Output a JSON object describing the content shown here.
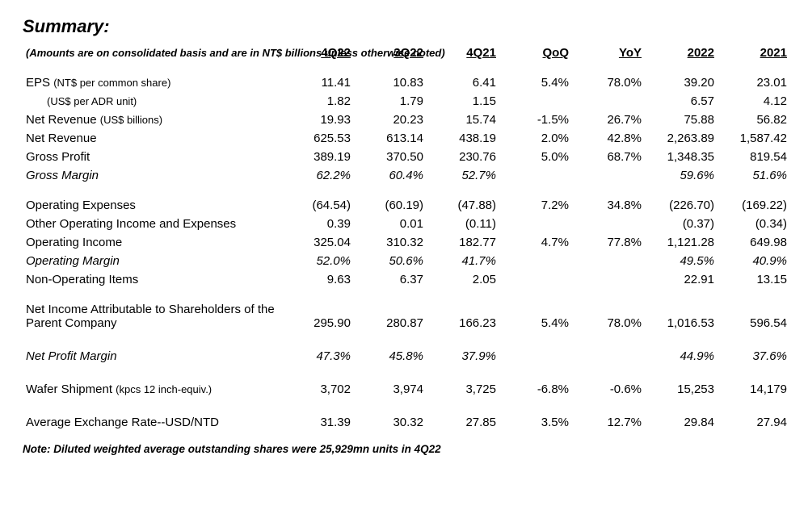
{
  "title": "Summary:",
  "subnote": "(Amounts are on consolidated basis and are in NT$ billions unless otherwise noted)",
  "columns": [
    "4Q22",
    "3Q22",
    "4Q21",
    "QoQ",
    "YoY",
    "2022",
    "2021"
  ],
  "rows": [
    {
      "kind": "data",
      "label_html": "EPS <span class='paren'>(NT$ per common share)</span>",
      "cells": [
        "11.41",
        "10.83",
        "6.41",
        "5.4%",
        "78.0%",
        "39.20",
        "23.01"
      ]
    },
    {
      "kind": "data",
      "label_html": "<span class='indent paren'>(US$ per ADR unit)</span>",
      "cells": [
        "1.82",
        "1.79",
        "1.15",
        "",
        "",
        "6.57",
        "4.12"
      ]
    },
    {
      "kind": "data",
      "label_html": "Net Revenue <span class='paren'>(US$ billions)</span>",
      "cells": [
        "19.93",
        "20.23",
        "15.74",
        "-1.5%",
        "26.7%",
        "75.88",
        "56.82"
      ]
    },
    {
      "kind": "data",
      "label_html": "Net Revenue",
      "cells": [
        "625.53",
        "613.14",
        "438.19",
        "2.0%",
        "42.8%",
        "2,263.89",
        "1,587.42"
      ]
    },
    {
      "kind": "data",
      "label_html": "Gross Profit",
      "cells": [
        "389.19",
        "370.50",
        "230.76",
        "5.0%",
        "68.7%",
        "1,348.35",
        "819.54"
      ]
    },
    {
      "kind": "data",
      "italic": true,
      "label_html": "Gross Margin",
      "cells": [
        "62.2%",
        "60.4%",
        "52.7%",
        "",
        "",
        "59.6%",
        "51.6%"
      ]
    },
    {
      "kind": "spacer"
    },
    {
      "kind": "data",
      "label_html": "Operating Expenses",
      "cells": [
        "(64.54)",
        "(60.19)",
        "(47.88)",
        "7.2%",
        "34.8%",
        "(226.70)",
        "(169.22)"
      ]
    },
    {
      "kind": "data",
      "label_html": "Other Operating Income and Expenses",
      "cells": [
        "0.39",
        "0.01",
        "(0.11)",
        "",
        "",
        "(0.37)",
        "(0.34)"
      ]
    },
    {
      "kind": "data",
      "label_html": "Operating Income",
      "cells": [
        "325.04",
        "310.32",
        "182.77",
        "4.7%",
        "77.8%",
        "1,121.28",
        "649.98"
      ]
    },
    {
      "kind": "data",
      "italic": true,
      "label_html": "Operating Margin",
      "cells": [
        "52.0%",
        "50.6%",
        "41.7%",
        "",
        "",
        "49.5%",
        "40.9%"
      ]
    },
    {
      "kind": "data",
      "label_html": "Non-Operating Items",
      "cells": [
        "9.63",
        "6.37",
        "2.05",
        "",
        "",
        "22.91",
        "13.15"
      ]
    },
    {
      "kind": "spacer"
    },
    {
      "kind": "data",
      "label_html": "Net Income Attributable to Shareholders of the Parent Company",
      "cells": [
        "295.90",
        "280.87",
        "166.23",
        "5.4%",
        "78.0%",
        "1,016.53",
        "596.54"
      ]
    },
    {
      "kind": "bigspacer"
    },
    {
      "kind": "data",
      "italic": true,
      "label_html": "Net Profit Margin",
      "cells": [
        "47.3%",
        "45.8%",
        "37.9%",
        "",
        "",
        "44.9%",
        "37.6%"
      ]
    },
    {
      "kind": "bigspacer"
    },
    {
      "kind": "data",
      "label_html": "Wafer Shipment <span class='paren'>(kpcs 12 inch-equiv.)</span>",
      "cells": [
        "3,702",
        "3,974",
        "3,725",
        "-6.8%",
        "-0.6%",
        "15,253",
        "14,179"
      ]
    },
    {
      "kind": "bigspacer"
    },
    {
      "kind": "data",
      "label_html": "Average Exchange Rate--USD/NTD",
      "cells": [
        "31.39",
        "30.32",
        "27.85",
        "3.5%",
        "12.7%",
        "29.84",
        "27.94"
      ]
    }
  ],
  "footnote": "Note: Diluted weighted average outstanding shares were 25,929mn units in 4Q22"
}
